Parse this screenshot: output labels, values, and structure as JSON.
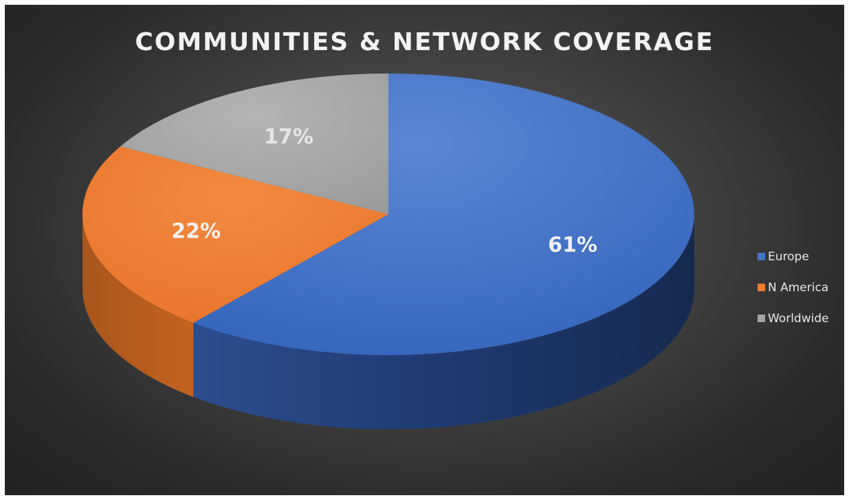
{
  "chart_data": {
    "type": "pie",
    "title": "COMMUNITIES & NETWORK COVERAGE",
    "categories": [
      "Europe",
      "N America",
      "Worldwide"
    ],
    "values": [
      61,
      22,
      17
    ],
    "labels": [
      "61%",
      "22%",
      "17%"
    ],
    "colors": [
      "#4472c4",
      "#ed7d31",
      "#a5a5a5"
    ],
    "legend_position": "right",
    "style": "3d"
  }
}
